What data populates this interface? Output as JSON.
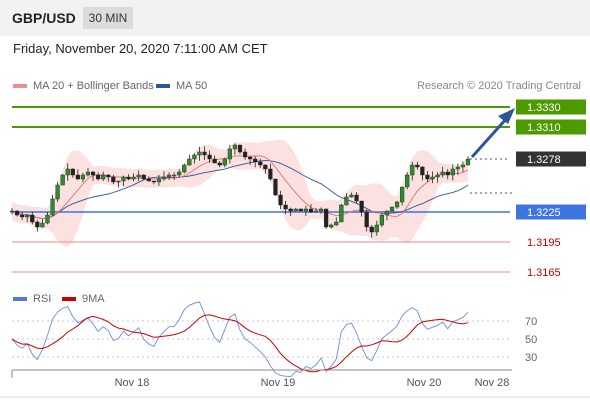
{
  "header": {
    "symbol": "GBP/USD",
    "timeframe": "30 MIN"
  },
  "datetime": "Friday, November 20, 2020 7:11:00 AM CET",
  "legend": {
    "ma20": "MA 20 + Bollinger Bands",
    "ma20_color": "#f08c8c",
    "ma50": "MA 50",
    "ma50_color": "#2f5597"
  },
  "credit": "Research © 2020 Trading Central",
  "rsi_legend": {
    "rsi": "RSI",
    "rsi_color": "#5577cc",
    "ma9": "9MA",
    "ma9_color": "#cc0000"
  },
  "chart_data": [
    {
      "type": "candlestick",
      "ylim": [
        1.315,
        1.334
      ],
      "x_ticks": [
        "Nov 18",
        "Nov 19",
        "Nov 20",
        "Nov 28"
      ],
      "levels": [
        {
          "value": 1.333,
          "label": "1.3330",
          "kind": "target"
        },
        {
          "value": 1.331,
          "label": "1.3310",
          "kind": "target"
        },
        {
          "value": 1.3278,
          "label": "1.3278",
          "kind": "current"
        },
        {
          "value": 1.3225,
          "label": "1.3225",
          "kind": "pivot"
        },
        {
          "value": 1.3195,
          "label": "1.3195",
          "kind": "support"
        },
        {
          "value": 1.3165,
          "label": "1.3165",
          "kind": "support"
        }
      ],
      "close_path": [
        1.3226,
        1.3222,
        1.322,
        1.3222,
        1.3215,
        1.321,
        1.3214,
        1.3222,
        1.3238,
        1.3252,
        1.3262,
        1.3268,
        1.3262,
        1.3258,
        1.3262,
        1.3265,
        1.3262,
        1.3258,
        1.3262,
        1.326,
        1.3255,
        1.3256,
        1.326,
        1.3258,
        1.326,
        1.3262,
        1.3258,
        1.3256,
        1.3255,
        1.3258,
        1.326,
        1.3262,
        1.3262,
        1.3265,
        1.3272,
        1.3278,
        1.3282,
        1.3285,
        1.3282,
        1.3278,
        1.3274,
        1.3272,
        1.3278,
        1.3288,
        1.3292,
        1.3285,
        1.328,
        1.3278,
        1.3275,
        1.3272,
        1.3268,
        1.3258,
        1.3242,
        1.3232,
        1.3228,
        1.3226,
        1.3228,
        1.3226,
        1.3228,
        1.3225,
        1.3226,
        1.3228,
        1.321,
        1.3212,
        1.3215,
        1.3232,
        1.324,
        1.3242,
        1.3236,
        1.3225,
        1.321,
        1.3205,
        1.3212,
        1.3222,
        1.3226,
        1.323,
        1.3235,
        1.325,
        1.3262,
        1.3272,
        1.327,
        1.3262,
        1.3258,
        1.326,
        1.3262,
        1.3265,
        1.3262,
        1.3268,
        1.327,
        1.3272,
        1.3278
      ]
    },
    {
      "type": "line",
      "title": "RSI",
      "ylim": [
        20,
        80
      ],
      "y_ticks": [
        70,
        50,
        30
      ]
    }
  ]
}
